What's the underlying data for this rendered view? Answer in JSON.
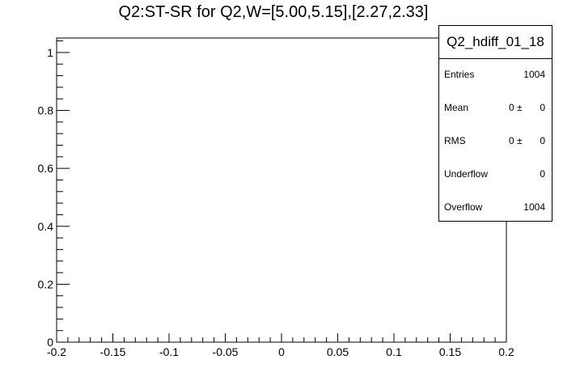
{
  "chart_data": {
    "type": "bar",
    "title": "Q2:ST-SR for Q2,W=[5.00,5.15],[2.27,2.33]",
    "xlabel": "",
    "ylabel": "",
    "xlim": [
      -0.2,
      0.2
    ],
    "ylim": [
      0,
      1.05
    ],
    "x_ticks": [
      "-0.2",
      "-0.15",
      "-0.1",
      "-0.05",
      "0",
      "0.05",
      "0.1",
      "0.15",
      "0.2"
    ],
    "y_ticks": [
      "0",
      "0.2",
      "0.4",
      "0.6",
      "0.8",
      "1"
    ],
    "values": [],
    "grid": false,
    "stats_box": {
      "name": "Q2_hdiff_01_18",
      "entries_label": "Entries",
      "entries": "1004",
      "mean_label": "Mean",
      "mean": "0",
      "mean_err": "0",
      "rms_label": "RMS",
      "rms": "0",
      "rms_err": "0",
      "underflow_label": "Underflow",
      "underflow": "0",
      "overflow_label": "Overflow",
      "overflow": "1004",
      "pm": "±"
    }
  }
}
